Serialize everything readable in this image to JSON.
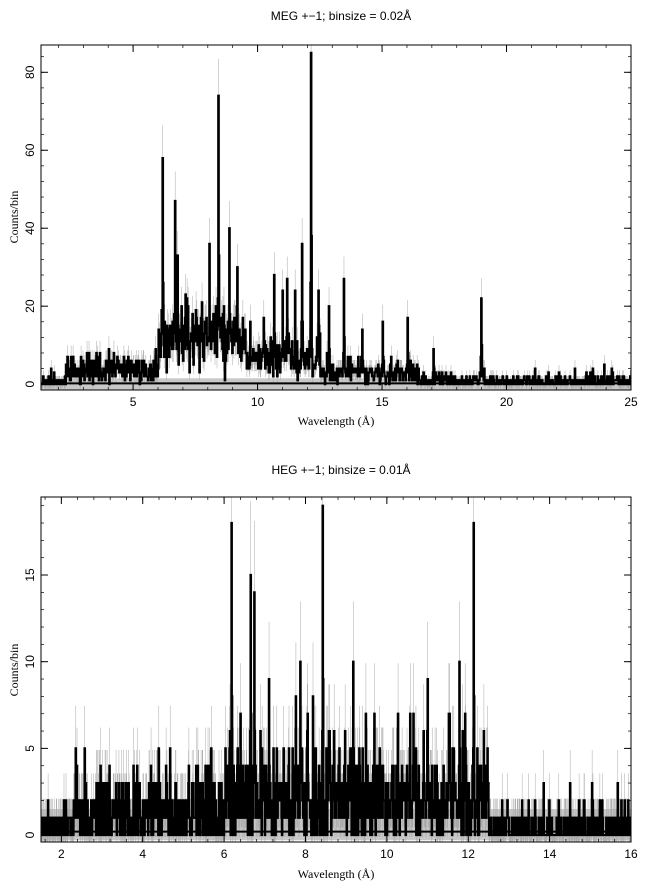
{
  "chart_data": [
    {
      "type": "line",
      "title": "MEG +−1; binsize = 0.02Å",
      "xlabel": "Wavelength (Å)",
      "ylabel": "Counts/bin",
      "xlim": [
        1.3,
        25.0
      ],
      "ylim": [
        -1.5,
        87.0
      ],
      "xticks": [
        5,
        10,
        15,
        20,
        25
      ],
      "yticks": [
        0,
        20,
        40,
        60,
        80
      ],
      "grid": false,
      "legend": "none",
      "background_band": [
        -1.4,
        1.5
      ],
      "noise": {
        "seed": 11,
        "step": 0.02,
        "regions": [
          {
            "x": [
              1.3,
              2.3
            ],
            "level": 0.8
          },
          {
            "x": [
              2.3,
              6.0
            ],
            "level": 3.5
          },
          {
            "x": [
              6.0,
              9.5
            ],
            "level": 12.0
          },
          {
            "x": [
              9.5,
              12.5
            ],
            "level": 7.0
          },
          {
            "x": [
              12.5,
              16.5
            ],
            "level": 3.0
          },
          {
            "x": [
              16.5,
              25.0
            ],
            "level": 0.8
          }
        ]
      },
      "peaks": [
        {
          "x": 6.18,
          "y": 58
        },
        {
          "x": 6.68,
          "y": 47
        },
        {
          "x": 6.78,
          "y": 33
        },
        {
          "x": 7.1,
          "y": 23
        },
        {
          "x": 7.75,
          "y": 21
        },
        {
          "x": 8.05,
          "y": 36
        },
        {
          "x": 8.42,
          "y": 74
        },
        {
          "x": 8.85,
          "y": 40
        },
        {
          "x": 9.17,
          "y": 30
        },
        {
          "x": 9.7,
          "y": 16
        },
        {
          "x": 10.24,
          "y": 17
        },
        {
          "x": 10.65,
          "y": 28
        },
        {
          "x": 11.0,
          "y": 24
        },
        {
          "x": 11.17,
          "y": 27
        },
        {
          "x": 11.5,
          "y": 24
        },
        {
          "x": 11.77,
          "y": 36
        },
        {
          "x": 12.13,
          "y": 85
        },
        {
          "x": 12.43,
          "y": 24
        },
        {
          "x": 12.85,
          "y": 20
        },
        {
          "x": 13.45,
          "y": 27
        },
        {
          "x": 14.2,
          "y": 14
        },
        {
          "x": 15.01,
          "y": 16
        },
        {
          "x": 16.01,
          "y": 17
        },
        {
          "x": 17.05,
          "y": 9
        },
        {
          "x": 18.97,
          "y": 22
        }
      ]
    },
    {
      "type": "line",
      "title": "HEG +−1; binsize = 0.01Å",
      "xlabel": "Wavelength (Å)",
      "ylabel": "Counts/bin",
      "xlim": [
        1.5,
        16.0
      ],
      "ylim": [
        -0.4,
        19.5
      ],
      "xticks": [
        2,
        4,
        6,
        8,
        10,
        12,
        14,
        16
      ],
      "yticks": [
        0,
        5,
        10,
        15
      ],
      "grid": false,
      "legend": "none",
      "background_band": [
        -0.3,
        1.5
      ],
      "noise": {
        "seed": 23,
        "step": 0.01,
        "regions": [
          {
            "x": [
              1.5,
              2.3
            ],
            "level": 0.5
          },
          {
            "x": [
              2.3,
              6.0
            ],
            "level": 1.3
          },
          {
            "x": [
              6.0,
              12.5
            ],
            "level": 2.2
          },
          {
            "x": [
              12.5,
              16.0
            ],
            "level": 0.4
          }
        ]
      },
      "peaks": [
        {
          "x": 6.18,
          "y": 18
        },
        {
          "x": 6.4,
          "y": 7
        },
        {
          "x": 6.65,
          "y": 15
        },
        {
          "x": 6.74,
          "y": 14
        },
        {
          "x": 7.1,
          "y": 9
        },
        {
          "x": 7.76,
          "y": 8
        },
        {
          "x": 8.05,
          "y": 7
        },
        {
          "x": 8.42,
          "y": 19
        },
        {
          "x": 8.7,
          "y": 6
        },
        {
          "x": 9.17,
          "y": 10
        },
        {
          "x": 9.48,
          "y": 7
        },
        {
          "x": 10.65,
          "y": 7
        },
        {
          "x": 11.0,
          "y": 9
        },
        {
          "x": 11.52,
          "y": 7
        },
        {
          "x": 11.78,
          "y": 10
        },
        {
          "x": 12.13,
          "y": 18
        }
      ]
    }
  ]
}
